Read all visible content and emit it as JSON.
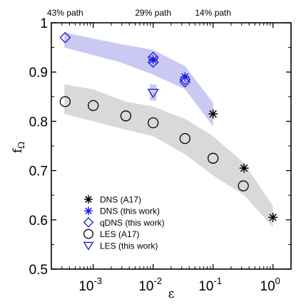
{
  "chart_data": {
    "type": "scatter",
    "xscale": "log",
    "xlim": [
      0.0002,
      2
    ],
    "ylim": [
      0.5,
      1.0
    ],
    "xlabel": "ε",
    "ylabel": "f",
    "ylabel_sub": "Ω",
    "x_ticks": [
      {
        "value": 0.001,
        "base": "10",
        "exp": "-3"
      },
      {
        "value": 0.01,
        "base": "10",
        "exp": "-2"
      },
      {
        "value": 0.1,
        "base": "10",
        "exp": "-1"
      },
      {
        "value": 1,
        "base": "10",
        "exp": "0"
      }
    ],
    "y_ticks": [
      {
        "value": 0.5,
        "label": "0.5"
      },
      {
        "value": 0.6,
        "label": "0.6"
      },
      {
        "value": 0.7,
        "label": "0.7"
      },
      {
        "value": 0.8,
        "label": "0.8"
      },
      {
        "value": 0.9,
        "label": "0.9"
      },
      {
        "value": 1.0,
        "label": "1"
      }
    ],
    "top_labels": [
      {
        "text": "43% path",
        "x": 0.00034
      },
      {
        "text": "29% path",
        "x": 0.01
      },
      {
        "text": "14% path",
        "x": 0.1
      }
    ],
    "bands": [
      {
        "name": "upper-band",
        "color": "#c9c9f3",
        "upper": [
          [
            0.00033,
            0.98
          ],
          [
            0.0028,
            0.957
          ],
          [
            0.01,
            0.945
          ],
          [
            0.034,
            0.912
          ],
          [
            0.1,
            0.838
          ]
        ],
        "lower": [
          [
            0.1,
            0.79
          ],
          [
            0.034,
            0.865
          ],
          [
            0.01,
            0.895
          ],
          [
            0.0028,
            0.92
          ],
          [
            0.00033,
            0.95
          ]
        ]
      },
      {
        "name": "lower-band",
        "color": "#d9d9d9",
        "upper": [
          [
            0.00033,
            0.875
          ],
          [
            0.001,
            0.865
          ],
          [
            0.0035,
            0.84
          ],
          [
            0.01,
            0.83
          ],
          [
            0.034,
            0.805
          ],
          [
            0.1,
            0.77
          ],
          [
            0.33,
            0.715
          ],
          [
            1,
            0.628
          ]
        ],
        "lower": [
          [
            1,
            0.585
          ],
          [
            0.33,
            0.65
          ],
          [
            0.1,
            0.69
          ],
          [
            0.034,
            0.733
          ],
          [
            0.01,
            0.77
          ],
          [
            0.0035,
            0.783
          ],
          [
            0.001,
            0.8
          ],
          [
            0.00033,
            0.815
          ]
        ]
      },
      {
        "name": "small-band",
        "color": "#c9c9f3",
        "upper": [
          [
            0.0088,
            0.875
          ],
          [
            0.0114,
            0.875
          ]
        ],
        "lower": [
          [
            0.0114,
            0.842
          ],
          [
            0.0088,
            0.842
          ]
        ]
      }
    ],
    "series": [
      {
        "name": "DNS (A17)",
        "marker": "asterisk",
        "color": "#000000",
        "points": [
          [
            0.1,
            0.815
          ],
          [
            0.33,
            0.705
          ],
          [
            1,
            0.605
          ]
        ]
      },
      {
        "name": "DNS (this work)",
        "marker": "asterisk",
        "color": "#1a1aff",
        "points": [
          [
            0.034,
            0.89
          ],
          [
            0.01,
            0.925
          ]
        ]
      },
      {
        "name": "qDNS (this work)",
        "marker": "diamond",
        "color": "#1a1ad0",
        "points": [
          [
            0.00034,
            0.97
          ],
          [
            0.01,
            0.93
          ],
          [
            0.01,
            0.92
          ],
          [
            0.034,
            0.885
          ],
          [
            0.034,
            0.88
          ]
        ]
      },
      {
        "name": "LES (A17)",
        "marker": "circle",
        "color": "#000000",
        "points": [
          [
            0.00034,
            0.84
          ],
          [
            0.001,
            0.832
          ],
          [
            0.0035,
            0.811
          ],
          [
            0.01,
            0.797
          ],
          [
            0.034,
            0.765
          ],
          [
            0.1,
            0.725
          ],
          [
            0.32,
            0.669
          ]
        ]
      },
      {
        "name": "LES (this work)",
        "marker": "triangle-down",
        "color": "#1a1ad0",
        "points": [
          [
            0.01,
            0.858
          ]
        ]
      }
    ],
    "legend": {
      "placement": "bottom-left"
    }
  }
}
